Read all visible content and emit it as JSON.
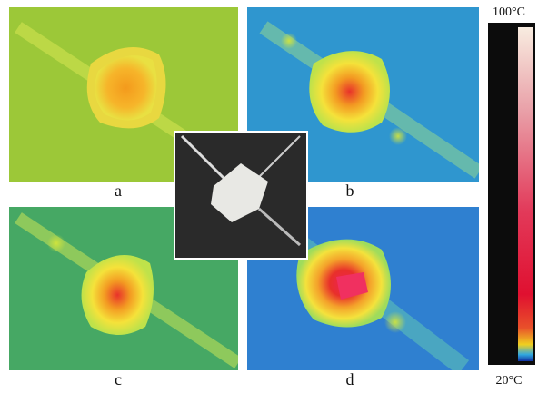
{
  "panels": [
    {
      "label": "a"
    },
    {
      "label": "b"
    },
    {
      "label": "c"
    },
    {
      "label": "d"
    }
  ],
  "colorbar": {
    "max_label": "100°C",
    "min_label": "20°C"
  }
}
